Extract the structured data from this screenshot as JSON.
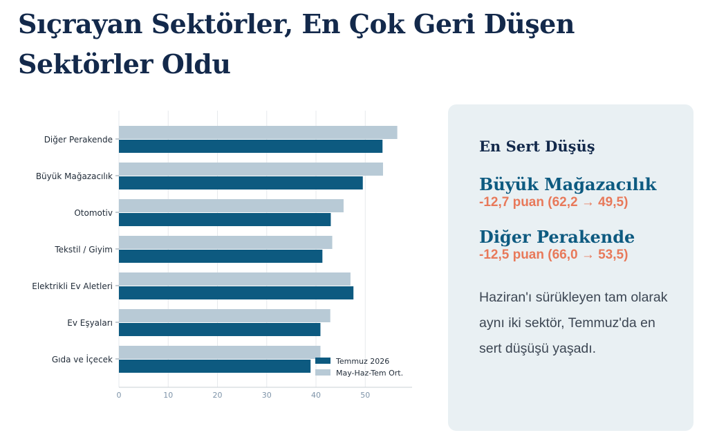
{
  "title": "Sıçrayan Sektörler, En Çok Geri Düşen Sektörler Oldu",
  "colors": {
    "title": "#13294b",
    "current_bar": "#0d5a80",
    "avg_bar": "#b8cad6",
    "card_bg": "#e9f0f3",
    "card_name": "#0d5a80",
    "card_change": "#e8795a"
  },
  "chart_data": {
    "type": "bar",
    "orientation": "horizontal",
    "categories": [
      "Diğer Perakende",
      "Büyük Mağazacılık",
      "Otomotiv",
      "Tekstil / Giyim",
      "Elektrikli Ev Aletleri",
      "Ev Eşyaları",
      "Gıda ve İçecek"
    ],
    "series": [
      {
        "name": "Temmuz 2026",
        "values": [
          53.5,
          49.5,
          43.0,
          41.3,
          47.6,
          40.9,
          38.9
        ],
        "color": "#0d5a80"
      },
      {
        "name": "May-Haz-Tem Ort.",
        "values": [
          56.5,
          53.6,
          45.6,
          43.3,
          47.0,
          42.9,
          40.9
        ],
        "color": "#b8cad6"
      }
    ],
    "x_ticks": [
      0,
      10,
      20,
      30,
      40,
      50
    ],
    "xlim": [
      0,
      59.5
    ],
    "grid": true,
    "legend_position": "bottom-right"
  },
  "card": {
    "heading": "En Sert Düşüş",
    "drops": [
      {
        "name": "Büyük Mağazacılık",
        "change": "-12,7 puan (62,2 → 49,5)"
      },
      {
        "name": "Diğer Perakende",
        "change": "-12,5 puan (66,0 → 53,5)"
      }
    ],
    "text": "Haziran'ı sürükleyen tam olarak aynı iki sektör, Temmuz'da en sert düşüşü yaşadı."
  }
}
